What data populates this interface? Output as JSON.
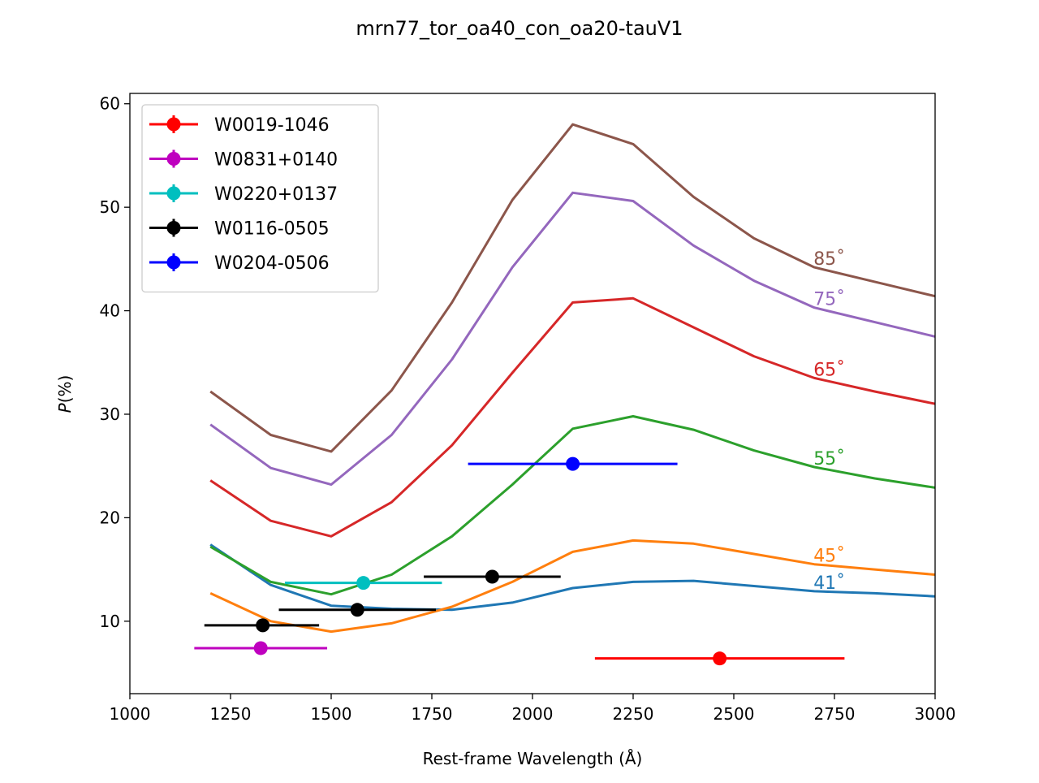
{
  "chart_data": {
    "type": "line",
    "title": "mrn77_tor_oa40_con_oa20-tauV1",
    "xlabel": "Rest-frame Wavelength (Å)",
    "ylabel_italic": "P",
    "ylabel_rest": "(%)",
    "xlim": [
      1000,
      3000
    ],
    "ylim": [
      3,
      61
    ],
    "xticks": [
      1000,
      1250,
      1500,
      1750,
      2000,
      2250,
      2500,
      2750,
      3000
    ],
    "yticks": [
      10,
      20,
      30,
      40,
      50,
      60
    ],
    "grid": false,
    "legend_position": "upper-left",
    "x": [
      1200,
      1350,
      1500,
      1650,
      1800,
      1950,
      2100,
      2250,
      2400,
      2550,
      2700,
      2850,
      3000
    ],
    "model_series": [
      {
        "label": "41˚",
        "color": "#1f77b4",
        "values": [
          17.4,
          13.5,
          11.5,
          11.2,
          11.1,
          11.8,
          13.2,
          13.8,
          13.9,
          13.4,
          12.9,
          12.7,
          12.4
        ]
      },
      {
        "label": "45˚",
        "color": "#ff7f0e",
        "values": [
          12.7,
          10.0,
          9.0,
          9.8,
          11.4,
          13.8,
          16.7,
          17.8,
          17.5,
          16.5,
          15.5,
          15.0,
          14.5
        ]
      },
      {
        "label": "55˚",
        "color": "#2ca02c",
        "values": [
          17.2,
          13.8,
          12.6,
          14.5,
          18.2,
          23.2,
          28.6,
          29.8,
          28.5,
          26.5,
          24.9,
          23.8,
          22.9
        ]
      },
      {
        "label": "65˚",
        "color": "#d62728",
        "values": [
          23.6,
          19.7,
          18.2,
          21.5,
          27.0,
          34.0,
          40.8,
          41.2,
          38.4,
          35.6,
          33.5,
          32.2,
          31.0
        ]
      },
      {
        "label": "75˚",
        "color": "#9467bd",
        "values": [
          29.0,
          24.8,
          23.2,
          28.0,
          35.3,
          44.2,
          51.4,
          50.6,
          46.3,
          42.9,
          40.3,
          38.9,
          37.5
        ]
      },
      {
        "label": "85˚",
        "color": "#8c564b",
        "values": [
          32.2,
          28.0,
          26.4,
          32.3,
          40.8,
          50.7,
          58.0,
          56.1,
          51.0,
          47.0,
          44.2,
          42.8,
          41.4
        ]
      }
    ],
    "observed_series": [
      {
        "name": "W0019-1046",
        "color": "#ff0000",
        "points": [
          {
            "x": 2465,
            "y": 6.4,
            "xmin": 2155,
            "xmax": 2775
          }
        ]
      },
      {
        "name": "W0831+0140",
        "color": "#bf00bf",
        "points": [
          {
            "x": 1325,
            "y": 7.4,
            "xmin": 1160,
            "xmax": 1490
          }
        ]
      },
      {
        "name": "W0220+0137",
        "color": "#00bfbf",
        "points": [
          {
            "x": 1580,
            "y": 13.7,
            "xmin": 1385,
            "xmax": 1775
          }
        ]
      },
      {
        "name": "W0116-0505",
        "color": "#000000",
        "points": [
          {
            "x": 1330,
            "y": 9.6,
            "xmin": 1185,
            "xmax": 1470
          },
          {
            "x": 1565,
            "y": 11.1,
            "xmin": 1370,
            "xmax": 1760
          },
          {
            "x": 1900,
            "y": 14.3,
            "xmin": 1730,
            "xmax": 2070
          }
        ]
      },
      {
        "name": "W0204-0506",
        "color": "#0000ff",
        "points": [
          {
            "x": 2100,
            "y": 25.2,
            "xmin": 1840,
            "xmax": 2360
          }
        ]
      }
    ]
  }
}
